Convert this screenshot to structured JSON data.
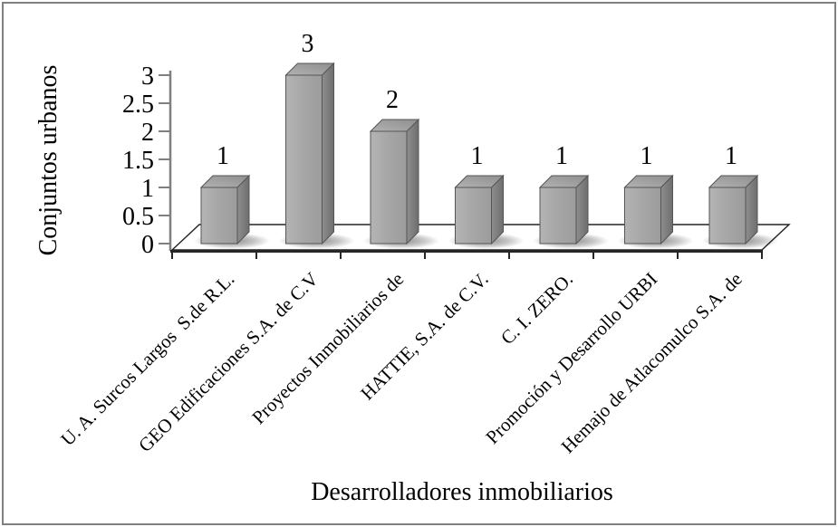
{
  "chart_data": {
    "type": "bar",
    "style": "3d-column",
    "title": "",
    "xlabel": "Desarrolladores inmobiliarios",
    "ylabel": "Conjuntos urbanos",
    "categories": [
      "U. A. Surcos Largos  S.de R.L.",
      "GEO Edificaciones S.A. de C.V",
      "Proyectos Inmobiliarios de",
      "HATTIE, S.A. de C.V.",
      "C. I. ZERO.",
      "Promoción y Desarrollo URBI",
      "Hemajo de Atlacomulco S.A. de"
    ],
    "values": [
      1,
      3,
      2,
      1,
      1,
      1,
      1
    ],
    "data_labels": [
      "1",
      "3",
      "2",
      "1",
      "1",
      "1",
      "1"
    ],
    "ylim": [
      0,
      3
    ],
    "ytick_step": 0.5,
    "yticks": [
      "0",
      "0.5",
      "1",
      "1.5",
      "2",
      "2.5",
      "3"
    ],
    "grid": false,
    "legend": "none",
    "colors": {
      "bar_front": "#a6a6a6",
      "bar_front_light": "#b4b4b4",
      "bar_side": "#8e8e8e",
      "bar_side_dark": "#6e6e6e",
      "bar_top": "#b2b2b2",
      "bar_top_dark": "#8f8f8f",
      "bar_outline": "#555555",
      "floor_fill": "#ffffff",
      "floor_outline": "#222222",
      "y_axis": "#7f7f7f",
      "x_axis": "#262626",
      "frame_border": "#808080"
    }
  }
}
